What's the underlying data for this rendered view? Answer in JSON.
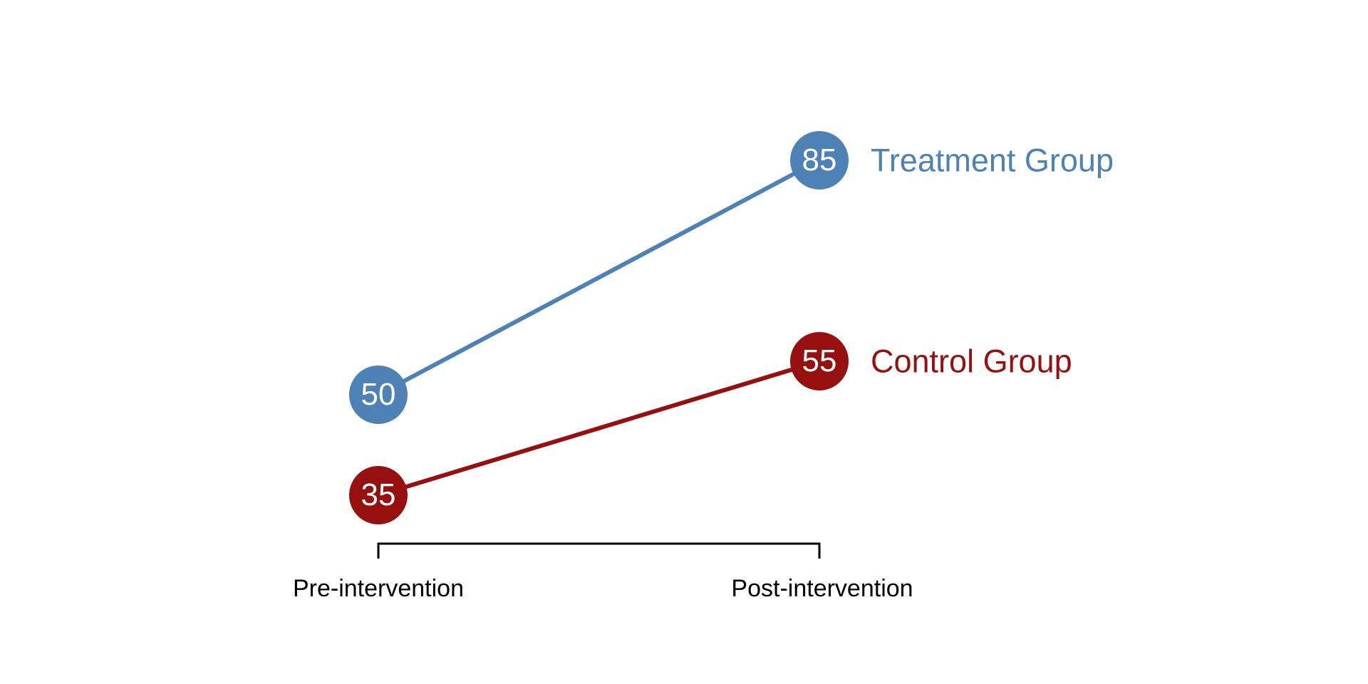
{
  "chart_data": {
    "type": "line",
    "subtype": "slopegraph",
    "title": "",
    "background_color": "#FFFFFF",
    "categories": [
      "Pre-intervention",
      "Post-intervention"
    ],
    "series": [
      {
        "name": "Treatment Group",
        "values": [
          50,
          85
        ],
        "color": "#4E81B5"
      },
      {
        "name": "Control Group",
        "values": [
          35,
          55
        ],
        "color": "#971010"
      }
    ],
    "point_value_labels": [
      "50",
      "85",
      "35",
      "55"
    ],
    "value_labels_inside_points": true,
    "legend_position": "right of last point, colored to match series",
    "axis": {
      "x_bracket_shown": true,
      "bracket_color": "#000000",
      "label_color": "#000000"
    },
    "grid": "off",
    "y_axis_shown": false,
    "ylim_implied": [
      35,
      85
    ]
  }
}
